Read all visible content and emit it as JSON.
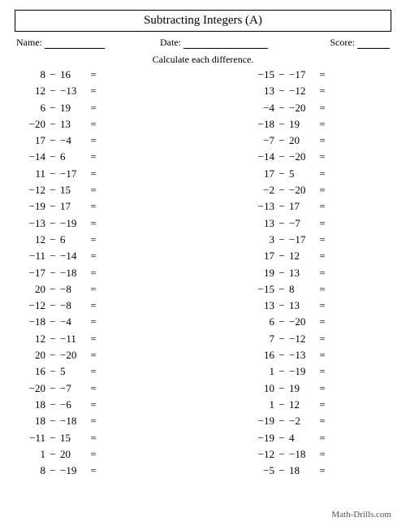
{
  "title": "Subtracting Integers (A)",
  "header": {
    "name_label": "Name:",
    "date_label": "Date:",
    "score_label": "Score:"
  },
  "instruction": "Calculate each difference.",
  "operator": "−",
  "equals": "=",
  "columns": {
    "left": [
      {
        "a": "8",
        "b": "16"
      },
      {
        "a": "12",
        "b": "−13"
      },
      {
        "a": "6",
        "b": "19"
      },
      {
        "a": "−20",
        "b": "13"
      },
      {
        "a": "17",
        "b": "−4"
      },
      {
        "a": "−14",
        "b": "6"
      },
      {
        "a": "11",
        "b": "−17"
      },
      {
        "a": "−12",
        "b": "15"
      },
      {
        "a": "−19",
        "b": "17"
      },
      {
        "a": "−13",
        "b": "−19"
      },
      {
        "a": "12",
        "b": "6"
      },
      {
        "a": "−11",
        "b": "−14"
      },
      {
        "a": "−17",
        "b": "−18"
      },
      {
        "a": "20",
        "b": "−8"
      },
      {
        "a": "−12",
        "b": "−8"
      },
      {
        "a": "−18",
        "b": "−4"
      },
      {
        "a": "12",
        "b": "−11"
      },
      {
        "a": "20",
        "b": "−20"
      },
      {
        "a": "16",
        "b": "5"
      },
      {
        "a": "−20",
        "b": "−7"
      },
      {
        "a": "18",
        "b": "−6"
      },
      {
        "a": "18",
        "b": "−18"
      },
      {
        "a": "−11",
        "b": "15"
      },
      {
        "a": "1",
        "b": "20"
      },
      {
        "a": "8",
        "b": "−19"
      }
    ],
    "right": [
      {
        "a": "−15",
        "b": "−17"
      },
      {
        "a": "13",
        "b": "−12"
      },
      {
        "a": "−4",
        "b": "−20"
      },
      {
        "a": "−18",
        "b": "19"
      },
      {
        "a": "−7",
        "b": "20"
      },
      {
        "a": "−14",
        "b": "−20"
      },
      {
        "a": "17",
        "b": "5"
      },
      {
        "a": "−2",
        "b": "−20"
      },
      {
        "a": "−13",
        "b": "17"
      },
      {
        "a": "13",
        "b": "−7"
      },
      {
        "a": "3",
        "b": "−17"
      },
      {
        "a": "17",
        "b": "12"
      },
      {
        "a": "19",
        "b": "13"
      },
      {
        "a": "−15",
        "b": "8"
      },
      {
        "a": "13",
        "b": "13"
      },
      {
        "a": "6",
        "b": "−20"
      },
      {
        "a": "7",
        "b": "−12"
      },
      {
        "a": "16",
        "b": "−13"
      },
      {
        "a": "1",
        "b": "−19"
      },
      {
        "a": "10",
        "b": "19"
      },
      {
        "a": "1",
        "b": "12"
      },
      {
        "a": "−19",
        "b": "−2"
      },
      {
        "a": "−19",
        "b": "4"
      },
      {
        "a": "−12",
        "b": "−18"
      },
      {
        "a": "−5",
        "b": "18"
      }
    ]
  },
  "footer": "Math-Drills.com",
  "style": {
    "line_widths": {
      "name": 74,
      "date": 104,
      "score": 40
    }
  }
}
